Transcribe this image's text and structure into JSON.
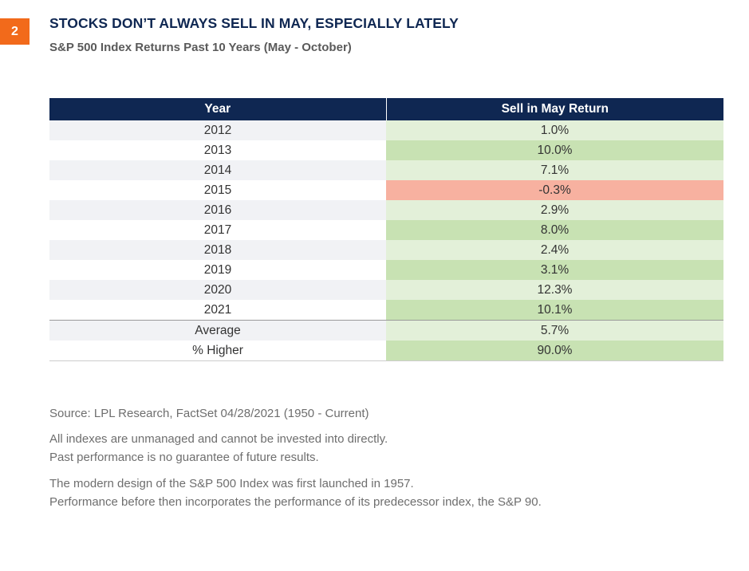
{
  "page_number": "2",
  "title": "STOCKS DON’T ALWAYS SELL IN MAY, ESPECIALLY LATELY",
  "subtitle": "S&P 500 Index Returns Past 10 Years (May - October)",
  "colors": {
    "header_bg": "#0f2752",
    "badge_bg": "#f26a1b",
    "positive_light": "#e3f0d9",
    "positive_strong": "#c8e2b3",
    "negative": "#f7b1a0",
    "year_alt": "#f1f2f5"
  },
  "table": {
    "headers": {
      "year": "Year",
      "return": "Sell in May Return"
    },
    "rows": [
      {
        "year": "2012",
        "value": "1.0%"
      },
      {
        "year": "2013",
        "value": "10.0%"
      },
      {
        "year": "2014",
        "value": "7.1%"
      },
      {
        "year": "2015",
        "value": "-0.3%"
      },
      {
        "year": "2016",
        "value": "2.9%"
      },
      {
        "year": "2017",
        "value": "8.0%"
      },
      {
        "year": "2018",
        "value": "2.4%"
      },
      {
        "year": "2019",
        "value": "3.1%"
      },
      {
        "year": "2020",
        "value": "12.3%"
      },
      {
        "year": "2021",
        "value": "10.1%"
      }
    ],
    "summary": [
      {
        "label": "Average",
        "value": "5.7%"
      },
      {
        "label": "% Higher",
        "value": "90.0%"
      }
    ]
  },
  "notes": {
    "source": "Source: LPL Research, FactSet  04/28/2021 (1950 - Current)",
    "disclaimer_1": "All indexes are unmanaged and cannot be invested into directly.",
    "disclaimer_2": "Past performance is no guarantee of future results.",
    "history_1": "The modern design of the S&P 500 Index was first launched in 1957.",
    "history_2": "Performance before then incorporates the performance of its predecessor index, the S&P 90."
  }
}
